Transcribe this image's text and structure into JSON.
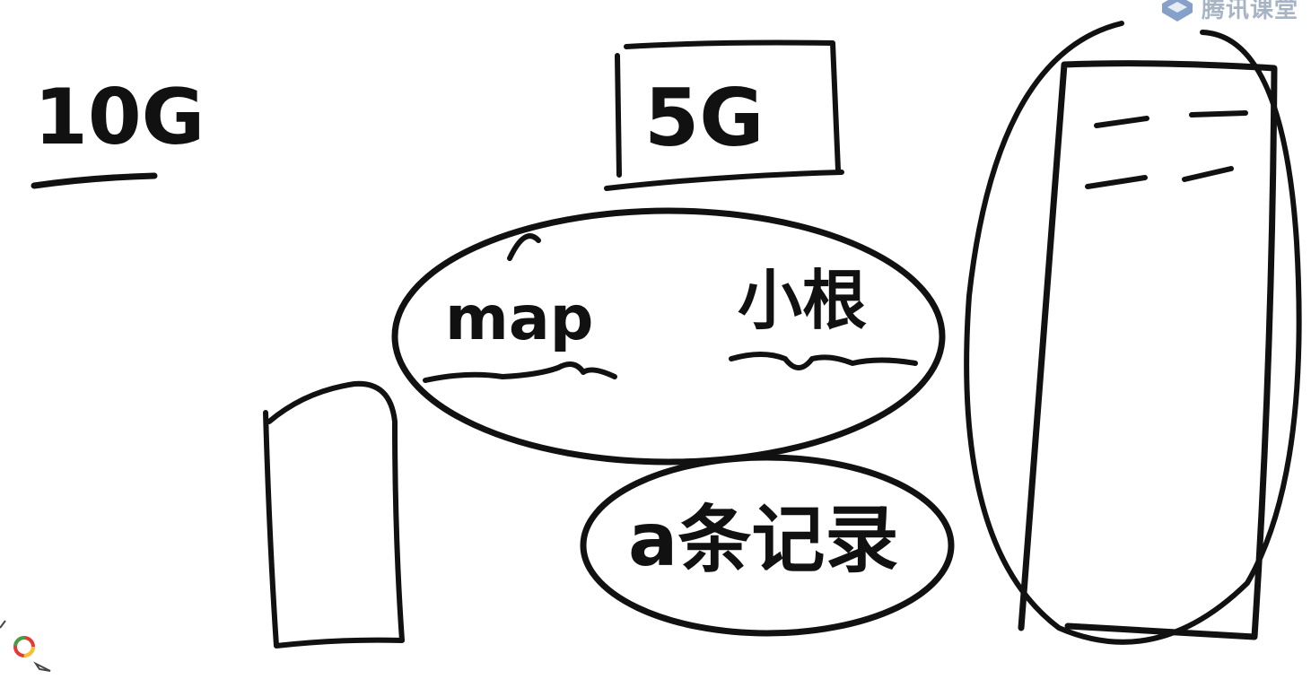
{
  "watermark": {
    "text": "腾讯课堂",
    "icon": "tencent-classroom-logo-icon",
    "color": "#8a9bb0"
  },
  "labels": {
    "left_size": "10G",
    "box_size": "5G",
    "map_word": "map",
    "second_word": "小根",
    "third_word": "a条记录"
  },
  "ink_color": "#111111",
  "tools": {
    "color_wheel_icon": "color-wheel-icon",
    "pen_icon": "pen-icon"
  }
}
